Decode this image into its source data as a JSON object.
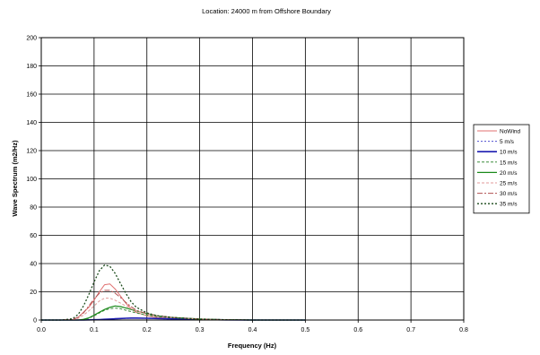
{
  "chart_data": {
    "type": "line",
    "title": "Location: 24000 m from Offshore Boundary",
    "xlabel": "Frequency (Hz)",
    "ylabel": "Wave Spectrum (m2/Hz)",
    "xlim": [
      0.0,
      0.8
    ],
    "ylim": [
      0,
      200
    ],
    "x_ticks": [
      "0.0",
      "0.1",
      "0.2",
      "0.3",
      "0.4",
      "0.5",
      "0.6",
      "0.7",
      "0.8"
    ],
    "y_ticks": [
      "0",
      "20",
      "40",
      "60",
      "80",
      "100",
      "120",
      "140",
      "160",
      "180",
      "200"
    ],
    "grid": true,
    "legend_position": "right",
    "x": [
      0.0,
      0.04,
      0.06,
      0.07,
      0.08,
      0.09,
      0.1,
      0.11,
      0.12,
      0.13,
      0.14,
      0.15,
      0.16,
      0.17,
      0.18,
      0.2,
      0.22,
      0.25,
      0.3,
      0.35,
      0.4,
      0.5
    ],
    "series": [
      {
        "name": "NoWind",
        "color": "#e07070",
        "dash": "solid",
        "width": 1,
        "values": [
          0,
          0,
          0.3,
          2,
          5.5,
          9,
          14,
          20,
          25,
          25.5,
          22,
          17,
          12,
          8,
          5.5,
          3,
          1.8,
          1,
          0.4,
          0.1,
          0,
          0
        ]
      },
      {
        "name": "5 m/s",
        "color": "#5050d0",
        "dash": "2,2",
        "width": 1,
        "values": [
          0,
          0,
          0,
          0,
          0,
          0,
          0.1,
          0.2,
          0.4,
          0.6,
          0.8,
          1,
          1.2,
          1.3,
          1.3,
          1.2,
          1,
          0.7,
          0.3,
          0.1,
          0,
          0
        ]
      },
      {
        "name": "10 m/s",
        "color": "#1c1cb0",
        "dash": "solid",
        "width": 1.6,
        "values": [
          0,
          0,
          0,
          0,
          0,
          0.1,
          0.2,
          0.3,
          0.5,
          0.7,
          0.9,
          1.1,
          1.3,
          1.4,
          1.4,
          1.3,
          1.1,
          0.8,
          0.4,
          0.1,
          0,
          0
        ]
      },
      {
        "name": "15 m/s",
        "color": "#3a8a3a",
        "dash": "3,2",
        "width": 1,
        "values": [
          0,
          0,
          0,
          0,
          0.3,
          1.2,
          3,
          5,
          7,
          8,
          8.5,
          8,
          7,
          6,
          5,
          3.5,
          2.5,
          1.5,
          0.6,
          0.2,
          0,
          0
        ]
      },
      {
        "name": "20 m/s",
        "color": "#1a8a1a",
        "dash": "solid",
        "width": 1.2,
        "values": [
          0,
          0,
          0,
          0,
          0.5,
          1.5,
          3.5,
          5.5,
          7.5,
          9,
          10,
          9.5,
          8.5,
          7.5,
          6.5,
          4.5,
          3,
          1.8,
          0.7,
          0.2,
          0,
          0
        ]
      },
      {
        "name": "25 m/s",
        "color": "#e09a9a",
        "dash": "3,2",
        "width": 1,
        "values": [
          0,
          0,
          0.3,
          1.2,
          3.5,
          6.5,
          10,
          13.5,
          15.5,
          15.5,
          14,
          12,
          10,
          8,
          6.5,
          4.5,
          3,
          1.8,
          0.7,
          0.2,
          0,
          0
        ]
      },
      {
        "name": "30 m/s",
        "color": "#b05050",
        "dash": "6,2,2,2",
        "width": 1,
        "values": [
          0,
          0,
          0.5,
          2,
          5,
          10,
          15,
          19,
          21,
          21,
          19,
          16,
          12.5,
          9.5,
          7,
          4.5,
          3,
          1.8,
          0.7,
          0.2,
          0,
          0
        ]
      },
      {
        "name": "35 m/s",
        "color": "#1a4a1a",
        "dash": "2,2",
        "width": 1.3,
        "values": [
          0,
          0,
          1,
          4,
          10,
          18,
          27,
          35,
          39,
          38,
          33,
          26,
          19,
          13,
          9,
          5,
          3,
          1.8,
          0.7,
          0.2,
          0,
          0
        ]
      }
    ]
  }
}
